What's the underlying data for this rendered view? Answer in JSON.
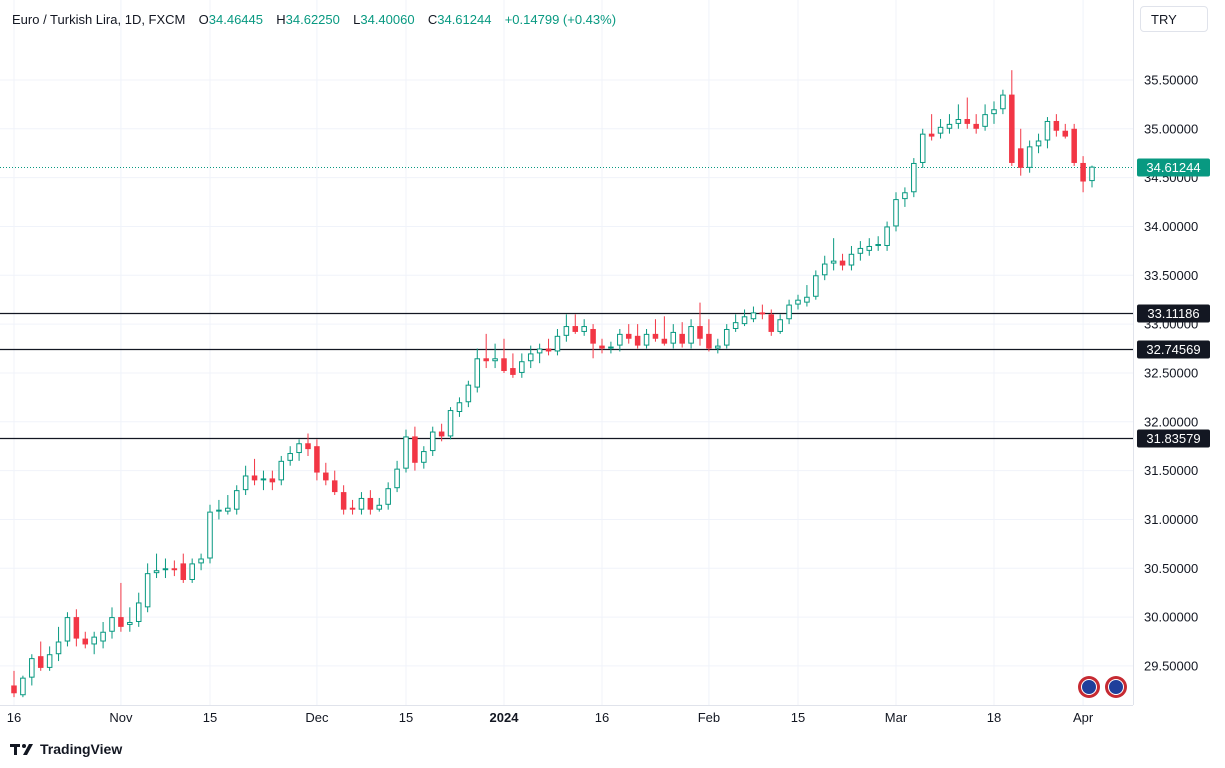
{
  "legend": {
    "title": "Euro / Turkish Lira, 1D, FXCM",
    "open_label": "O",
    "open": "34.46445",
    "high_label": "H",
    "high": "34.62250",
    "low_label": "L",
    "low": "34.40060",
    "close_label": "C",
    "close": "34.61244",
    "change": "+0.14799 (+0.43%)"
  },
  "currency": "TRY",
  "brand": "TradingView",
  "colors": {
    "up": "#089981",
    "down": "#f23645",
    "current_price": "#089981",
    "level_line": "#131722"
  },
  "chart_data": {
    "type": "candlestick",
    "symbol": "EUR/TRY",
    "timeframe": "1D",
    "ylim": [
      29.1,
      35.95
    ],
    "y_ticks": [
      "29.50000",
      "30.00000",
      "30.50000",
      "31.00000",
      "31.50000",
      "32.00000",
      "32.50000",
      "33.00000",
      "33.50000",
      "34.00000",
      "34.50000",
      "35.00000",
      "35.50000"
    ],
    "x_ticks": [
      {
        "label": "16",
        "date": "2023-10-16",
        "bold": false
      },
      {
        "label": "Nov",
        "date": "2023-11-01",
        "bold": false
      },
      {
        "label": "15",
        "date": "2023-11-15",
        "bold": false
      },
      {
        "label": "Dec",
        "date": "2023-12-01",
        "bold": false
      },
      {
        "label": "15",
        "date": "2023-12-15",
        "bold": false
      },
      {
        "label": "2024",
        "date": "2024-01-01",
        "bold": true
      },
      {
        "label": "16",
        "date": "2024-01-16",
        "bold": false
      },
      {
        "label": "Feb",
        "date": "2024-02-01",
        "bold": false
      },
      {
        "label": "15",
        "date": "2024-02-15",
        "bold": false
      },
      {
        "label": "Mar",
        "date": "2024-03-01",
        "bold": false
      },
      {
        "label": "18",
        "date": "2024-03-18",
        "bold": false
      },
      {
        "label": "Apr",
        "date": "2024-04-01",
        "bold": false
      }
    ],
    "current_price": "34.61244",
    "horizontal_levels": [
      "33.11186",
      "32.74569",
      "31.83579"
    ],
    "candles": [
      {
        "date": "2023-10-16",
        "o": 29.3,
        "h": 29.45,
        "l": 29.18,
        "c": 29.22
      },
      {
        "date": "2023-10-17",
        "o": 29.2,
        "h": 29.4,
        "l": 29.18,
        "c": 29.38
      },
      {
        "date": "2023-10-18",
        "o": 29.38,
        "h": 29.62,
        "l": 29.3,
        "c": 29.58
      },
      {
        "date": "2023-10-19",
        "o": 29.6,
        "h": 29.75,
        "l": 29.45,
        "c": 29.48
      },
      {
        "date": "2023-10-20",
        "o": 29.48,
        "h": 29.7,
        "l": 29.45,
        "c": 29.62
      },
      {
        "date": "2023-10-23",
        "o": 29.62,
        "h": 29.9,
        "l": 29.55,
        "c": 29.75
      },
      {
        "date": "2023-10-24",
        "o": 29.75,
        "h": 30.05,
        "l": 29.7,
        "c": 30.0
      },
      {
        "date": "2023-10-25",
        "o": 30.0,
        "h": 30.08,
        "l": 29.7,
        "c": 29.78
      },
      {
        "date": "2023-10-26",
        "o": 29.78,
        "h": 29.85,
        "l": 29.68,
        "c": 29.72
      },
      {
        "date": "2023-10-27",
        "o": 29.72,
        "h": 29.85,
        "l": 29.62,
        "c": 29.8
      },
      {
        "date": "2023-10-30",
        "o": 29.75,
        "h": 29.95,
        "l": 29.68,
        "c": 29.85
      },
      {
        "date": "2023-10-31",
        "o": 29.85,
        "h": 30.1,
        "l": 29.78,
        "c": 30.0
      },
      {
        "date": "2023-11-01",
        "o": 30.0,
        "h": 30.35,
        "l": 29.85,
        "c": 29.9
      },
      {
        "date": "2023-11-02",
        "o": 29.92,
        "h": 30.1,
        "l": 29.85,
        "c": 29.95
      },
      {
        "date": "2023-11-03",
        "o": 29.95,
        "h": 30.25,
        "l": 29.9,
        "c": 30.15
      },
      {
        "date": "2023-11-06",
        "o": 30.1,
        "h": 30.55,
        "l": 30.05,
        "c": 30.45
      },
      {
        "date": "2023-11-07",
        "o": 30.45,
        "h": 30.65,
        "l": 30.4,
        "c": 30.48
      },
      {
        "date": "2023-11-08",
        "o": 30.48,
        "h": 30.6,
        "l": 30.4,
        "c": 30.5
      },
      {
        "date": "2023-11-09",
        "o": 30.5,
        "h": 30.58,
        "l": 30.42,
        "c": 30.48
      },
      {
        "date": "2023-11-10",
        "o": 30.55,
        "h": 30.65,
        "l": 30.35,
        "c": 30.38
      },
      {
        "date": "2023-11-13",
        "o": 30.38,
        "h": 30.6,
        "l": 30.35,
        "c": 30.55
      },
      {
        "date": "2023-11-14",
        "o": 30.55,
        "h": 30.65,
        "l": 30.48,
        "c": 30.6
      },
      {
        "date": "2023-11-15",
        "o": 30.6,
        "h": 31.15,
        "l": 30.55,
        "c": 31.08
      },
      {
        "date": "2023-11-16",
        "o": 31.08,
        "h": 31.2,
        "l": 31.0,
        "c": 31.1
      },
      {
        "date": "2023-11-17",
        "o": 31.08,
        "h": 31.25,
        "l": 31.05,
        "c": 31.12
      },
      {
        "date": "2023-11-20",
        "o": 31.1,
        "h": 31.35,
        "l": 31.05,
        "c": 31.3
      },
      {
        "date": "2023-11-21",
        "o": 31.3,
        "h": 31.55,
        "l": 31.25,
        "c": 31.45
      },
      {
        "date": "2023-11-22",
        "o": 31.45,
        "h": 31.62,
        "l": 31.35,
        "c": 31.4
      },
      {
        "date": "2023-11-23",
        "o": 31.4,
        "h": 31.5,
        "l": 31.3,
        "c": 31.42
      },
      {
        "date": "2023-11-24",
        "o": 31.42,
        "h": 31.5,
        "l": 31.3,
        "c": 31.38
      },
      {
        "date": "2023-11-27",
        "o": 31.4,
        "h": 31.65,
        "l": 31.35,
        "c": 31.6
      },
      {
        "date": "2023-11-28",
        "o": 31.6,
        "h": 31.75,
        "l": 31.55,
        "c": 31.68
      },
      {
        "date": "2023-11-29",
        "o": 31.68,
        "h": 31.82,
        "l": 31.6,
        "c": 31.78
      },
      {
        "date": "2023-11-30",
        "o": 31.78,
        "h": 31.88,
        "l": 31.65,
        "c": 31.72
      },
      {
        "date": "2023-12-01",
        "o": 31.75,
        "h": 31.82,
        "l": 31.4,
        "c": 31.48
      },
      {
        "date": "2023-12-04",
        "o": 31.48,
        "h": 31.58,
        "l": 31.35,
        "c": 31.4
      },
      {
        "date": "2023-12-05",
        "o": 31.4,
        "h": 31.5,
        "l": 31.25,
        "c": 31.28
      },
      {
        "date": "2023-12-06",
        "o": 31.28,
        "h": 31.35,
        "l": 31.05,
        "c": 31.1
      },
      {
        "date": "2023-12-07",
        "o": 31.12,
        "h": 31.2,
        "l": 31.05,
        "c": 31.1
      },
      {
        "date": "2023-12-08",
        "o": 31.1,
        "h": 31.28,
        "l": 31.05,
        "c": 31.22
      },
      {
        "date": "2023-12-11",
        "o": 31.22,
        "h": 31.3,
        "l": 31.05,
        "c": 31.1
      },
      {
        "date": "2023-12-12",
        "o": 31.1,
        "h": 31.22,
        "l": 31.08,
        "c": 31.15
      },
      {
        "date": "2023-12-13",
        "o": 31.15,
        "h": 31.38,
        "l": 31.1,
        "c": 31.32
      },
      {
        "date": "2023-12-14",
        "o": 31.32,
        "h": 31.6,
        "l": 31.28,
        "c": 31.52
      },
      {
        "date": "2023-12-15",
        "o": 31.52,
        "h": 31.92,
        "l": 31.48,
        "c": 31.85
      },
      {
        "date": "2023-12-18",
        "o": 31.85,
        "h": 31.95,
        "l": 31.5,
        "c": 31.58
      },
      {
        "date": "2023-12-19",
        "o": 31.58,
        "h": 31.75,
        "l": 31.52,
        "c": 31.7
      },
      {
        "date": "2023-12-20",
        "o": 31.7,
        "h": 31.95,
        "l": 31.65,
        "c": 31.9
      },
      {
        "date": "2023-12-21",
        "o": 31.9,
        "h": 31.98,
        "l": 31.8,
        "c": 31.85
      },
      {
        "date": "2023-12-22",
        "o": 31.85,
        "h": 32.15,
        "l": 31.82,
        "c": 32.12
      },
      {
        "date": "2023-12-25",
        "o": 32.1,
        "h": 32.25,
        "l": 32.05,
        "c": 32.2
      },
      {
        "date": "2023-12-26",
        "o": 32.2,
        "h": 32.42,
        "l": 32.15,
        "c": 32.38
      },
      {
        "date": "2023-12-27",
        "o": 32.35,
        "h": 32.75,
        "l": 32.3,
        "c": 32.65
      },
      {
        "date": "2023-12-28",
        "o": 32.65,
        "h": 32.9,
        "l": 32.55,
        "c": 32.62
      },
      {
        "date": "2023-12-29",
        "o": 32.62,
        "h": 32.8,
        "l": 32.55,
        "c": 32.65
      },
      {
        "date": "2024-01-01",
        "o": 32.65,
        "h": 32.85,
        "l": 32.5,
        "c": 32.52
      },
      {
        "date": "2024-01-02",
        "o": 32.55,
        "h": 32.7,
        "l": 32.45,
        "c": 32.48
      },
      {
        "date": "2024-01-03",
        "o": 32.5,
        "h": 32.7,
        "l": 32.45,
        "c": 32.62
      },
      {
        "date": "2024-01-04",
        "o": 32.62,
        "h": 32.78,
        "l": 32.55,
        "c": 32.7
      },
      {
        "date": "2024-01-05",
        "o": 32.7,
        "h": 32.8,
        "l": 32.6,
        "c": 32.75
      },
      {
        "date": "2024-01-08",
        "o": 32.75,
        "h": 32.85,
        "l": 32.68,
        "c": 32.72
      },
      {
        "date": "2024-01-09",
        "o": 32.72,
        "h": 32.95,
        "l": 32.68,
        "c": 32.88
      },
      {
        "date": "2024-01-10",
        "o": 32.88,
        "h": 33.1,
        "l": 32.82,
        "c": 32.98
      },
      {
        "date": "2024-01-11",
        "o": 32.98,
        "h": 33.1,
        "l": 32.9,
        "c": 32.92
      },
      {
        "date": "2024-01-12",
        "o": 32.92,
        "h": 33.05,
        "l": 32.88,
        "c": 32.98
      },
      {
        "date": "2024-01-15",
        "o": 32.95,
        "h": 33.0,
        "l": 32.65,
        "c": 32.8
      },
      {
        "date": "2024-01-16",
        "o": 32.78,
        "h": 32.85,
        "l": 32.7,
        "c": 32.75
      },
      {
        "date": "2024-01-17",
        "o": 32.75,
        "h": 32.82,
        "l": 32.7,
        "c": 32.77
      },
      {
        "date": "2024-01-18",
        "o": 32.78,
        "h": 32.95,
        "l": 32.72,
        "c": 32.9
      },
      {
        "date": "2024-01-19",
        "o": 32.9,
        "h": 33.0,
        "l": 32.8,
        "c": 32.85
      },
      {
        "date": "2024-01-22",
        "o": 32.88,
        "h": 33.0,
        "l": 32.75,
        "c": 32.78
      },
      {
        "date": "2024-01-23",
        "o": 32.78,
        "h": 32.95,
        "l": 32.75,
        "c": 32.9
      },
      {
        "date": "2024-01-24",
        "o": 32.9,
        "h": 33.05,
        "l": 32.82,
        "c": 32.85
      },
      {
        "date": "2024-01-25",
        "o": 32.85,
        "h": 33.08,
        "l": 32.78,
        "c": 32.8
      },
      {
        "date": "2024-01-26",
        "o": 32.8,
        "h": 33.0,
        "l": 32.75,
        "c": 32.92
      },
      {
        "date": "2024-01-29",
        "o": 32.9,
        "h": 33.02,
        "l": 32.76,
        "c": 32.8
      },
      {
        "date": "2024-01-30",
        "o": 32.8,
        "h": 33.05,
        "l": 32.75,
        "c": 32.98
      },
      {
        "date": "2024-01-31",
        "o": 32.98,
        "h": 33.22,
        "l": 32.78,
        "c": 32.85
      },
      {
        "date": "2024-02-01",
        "o": 32.9,
        "h": 33.05,
        "l": 32.72,
        "c": 32.75
      },
      {
        "date": "2024-02-02",
        "o": 32.75,
        "h": 32.85,
        "l": 32.7,
        "c": 32.78
      },
      {
        "date": "2024-02-05",
        "o": 32.78,
        "h": 33.0,
        "l": 32.75,
        "c": 32.95
      },
      {
        "date": "2024-02-06",
        "o": 32.95,
        "h": 33.1,
        "l": 32.92,
        "c": 33.02
      },
      {
        "date": "2024-02-07",
        "o": 33.0,
        "h": 33.15,
        "l": 32.98,
        "c": 33.08
      },
      {
        "date": "2024-02-08",
        "o": 33.05,
        "h": 33.18,
        "l": 33.02,
        "c": 33.12
      },
      {
        "date": "2024-02-09",
        "o": 33.12,
        "h": 33.2,
        "l": 33.05,
        "c": 33.1
      },
      {
        "date": "2024-02-12",
        "o": 33.1,
        "h": 33.15,
        "l": 32.88,
        "c": 32.92
      },
      {
        "date": "2024-02-13",
        "o": 32.92,
        "h": 33.1,
        "l": 32.9,
        "c": 33.05
      },
      {
        "date": "2024-02-14",
        "o": 33.05,
        "h": 33.25,
        "l": 33.0,
        "c": 33.2
      },
      {
        "date": "2024-02-15",
        "o": 33.2,
        "h": 33.3,
        "l": 33.15,
        "c": 33.25
      },
      {
        "date": "2024-02-16",
        "o": 33.22,
        "h": 33.4,
        "l": 33.18,
        "c": 33.28
      },
      {
        "date": "2024-02-19",
        "o": 33.28,
        "h": 33.55,
        "l": 33.25,
        "c": 33.5
      },
      {
        "date": "2024-02-20",
        "o": 33.5,
        "h": 33.7,
        "l": 33.45,
        "c": 33.62
      },
      {
        "date": "2024-02-21",
        "o": 33.62,
        "h": 33.88,
        "l": 33.55,
        "c": 33.65
      },
      {
        "date": "2024-02-22",
        "o": 33.65,
        "h": 33.72,
        "l": 33.55,
        "c": 33.6
      },
      {
        "date": "2024-02-23",
        "o": 33.6,
        "h": 33.8,
        "l": 33.55,
        "c": 33.72
      },
      {
        "date": "2024-02-26",
        "o": 33.72,
        "h": 33.85,
        "l": 33.65,
        "c": 33.78
      },
      {
        "date": "2024-02-27",
        "o": 33.75,
        "h": 33.88,
        "l": 33.7,
        "c": 33.8
      },
      {
        "date": "2024-02-28",
        "o": 33.8,
        "h": 33.9,
        "l": 33.75,
        "c": 33.82
      },
      {
        "date": "2024-02-29",
        "o": 33.8,
        "h": 34.05,
        "l": 33.75,
        "c": 34.0
      },
      {
        "date": "2024-03-01",
        "o": 34.0,
        "h": 34.35,
        "l": 33.95,
        "c": 34.28
      },
      {
        "date": "2024-03-04",
        "o": 34.28,
        "h": 34.4,
        "l": 34.2,
        "c": 34.35
      },
      {
        "date": "2024-03-05",
        "o": 34.35,
        "h": 34.7,
        "l": 34.3,
        "c": 34.65
      },
      {
        "date": "2024-03-06",
        "o": 34.65,
        "h": 35.0,
        "l": 34.6,
        "c": 34.95
      },
      {
        "date": "2024-03-07",
        "o": 34.95,
        "h": 35.15,
        "l": 34.88,
        "c": 34.92
      },
      {
        "date": "2024-03-08",
        "o": 34.95,
        "h": 35.1,
        "l": 34.9,
        "c": 35.02
      },
      {
        "date": "2024-03-11",
        "o": 35.0,
        "h": 35.15,
        "l": 34.95,
        "c": 35.05
      },
      {
        "date": "2024-03-12",
        "o": 35.05,
        "h": 35.25,
        "l": 35.0,
        "c": 35.1
      },
      {
        "date": "2024-03-13",
        "o": 35.1,
        "h": 35.32,
        "l": 35.0,
        "c": 35.05
      },
      {
        "date": "2024-03-14",
        "o": 35.05,
        "h": 35.15,
        "l": 34.95,
        "c": 35.0
      },
      {
        "date": "2024-03-15",
        "o": 35.02,
        "h": 35.25,
        "l": 34.98,
        "c": 35.15
      },
      {
        "date": "2024-03-18",
        "o": 35.15,
        "h": 35.28,
        "l": 35.05,
        "c": 35.2
      },
      {
        "date": "2024-03-19",
        "o": 35.2,
        "h": 35.4,
        "l": 35.15,
        "c": 35.35
      },
      {
        "date": "2024-03-20",
        "o": 35.35,
        "h": 35.6,
        "l": 34.62,
        "c": 34.65
      },
      {
        "date": "2024-03-21",
        "o": 34.8,
        "h": 35.0,
        "l": 34.52,
        "c": 34.6
      },
      {
        "date": "2024-03-22",
        "o": 34.6,
        "h": 34.88,
        "l": 34.55,
        "c": 34.82
      },
      {
        "date": "2024-03-25",
        "o": 34.82,
        "h": 34.95,
        "l": 34.75,
        "c": 34.88
      },
      {
        "date": "2024-03-26",
        "o": 34.88,
        "h": 35.12,
        "l": 34.8,
        "c": 35.08
      },
      {
        "date": "2024-03-27",
        "o": 35.08,
        "h": 35.15,
        "l": 34.92,
        "c": 34.98
      },
      {
        "date": "2024-03-28",
        "o": 34.98,
        "h": 35.05,
        "l": 34.9,
        "c": 34.92
      },
      {
        "date": "2024-03-29",
        "o": 35.0,
        "h": 35.05,
        "l": 34.62,
        "c": 34.65
      },
      {
        "date": "2024-04-01",
        "o": 34.65,
        "h": 34.72,
        "l": 34.35,
        "c": 34.46
      },
      {
        "date": "2024-04-02",
        "o": 34.46445,
        "h": 34.6225,
        "l": 34.4006,
        "c": 34.61244
      }
    ]
  }
}
